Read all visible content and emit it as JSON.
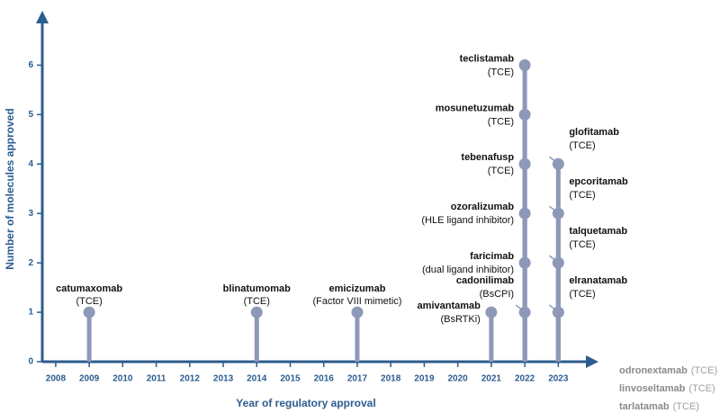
{
  "chart_data": {
    "type": "lollipop",
    "x_label": "Year of regulatory approval",
    "y_label": "Number of molecules approved",
    "xlim": [
      2007.6,
      2024.2
    ],
    "ylim": [
      0,
      7.1
    ],
    "xticks": [
      2008,
      2009,
      2010,
      2011,
      2012,
      2013,
      2014,
      2015,
      2016,
      2017,
      2018,
      2019,
      2020,
      2021,
      2022,
      2023
    ],
    "yticks": [
      0,
      1,
      2,
      3,
      4,
      5,
      6
    ],
    "color": "#8e98b8",
    "axis_color": "#2b5c8f",
    "points": [
      {
        "name": "catumaxomab",
        "detail": "(TCE)",
        "x": 2009,
        "y": 1
      },
      {
        "name": "blinatumomab",
        "detail": "(TCE)",
        "x": 2014,
        "y": 1
      },
      {
        "name": "emicizumab",
        "detail": "(Factor VIII mimetic)",
        "x": 2017,
        "y": 1
      },
      {
        "name": "amivantamab",
        "detail": "(BsRTKi)",
        "x": 2021,
        "y": 1
      },
      {
        "name": "cadonilimab",
        "detail": "(BsCPI)",
        "x": 2022,
        "y": 1
      },
      {
        "name": "faricimab",
        "detail": "(dual ligand inhibitor)",
        "x": 2022,
        "y": 2
      },
      {
        "name": "ozoralizumab",
        "detail": "(HLE ligand inhibitor)",
        "x": 2022,
        "y": 3
      },
      {
        "name": "tebenafusp",
        "detail": "(TCE)",
        "x": 2022,
        "y": 4
      },
      {
        "name": "mosunetuzumab",
        "detail": "(TCE)",
        "x": 2022,
        "y": 5
      },
      {
        "name": "teclistamab",
        "detail": "(TCE)",
        "x": 2022,
        "y": 6
      },
      {
        "name": "elranatamab",
        "detail": "(TCE)",
        "x": 2023,
        "y": 1
      },
      {
        "name": "talquetamab",
        "detail": "(TCE)",
        "x": 2023,
        "y": 2
      },
      {
        "name": "epcoritamab",
        "detail": "(TCE)",
        "x": 2023,
        "y": 3
      },
      {
        "name": "glofitamab",
        "detail": "(TCE)",
        "x": 2023,
        "y": 4
      }
    ],
    "pending": [
      {
        "name": "odronextamab",
        "detail": "(TCE)"
      },
      {
        "name": "linvoseltamab",
        "detail": "(TCE)"
      },
      {
        "name": "tarlatamab",
        "detail": "(TCE)"
      }
    ]
  }
}
